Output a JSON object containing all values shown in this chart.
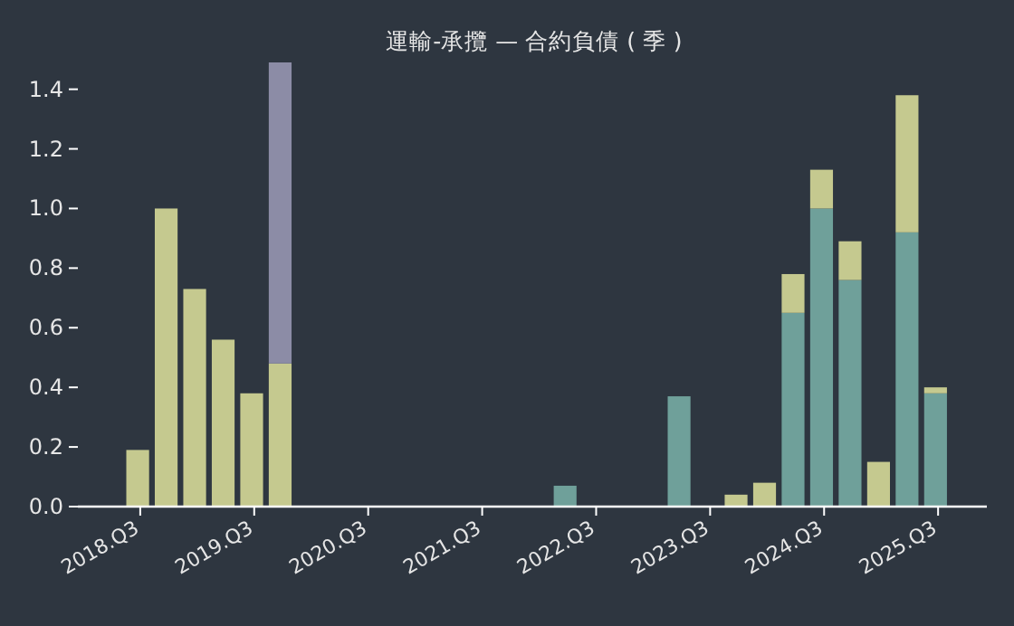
{
  "chart_data": {
    "type": "bar",
    "title": "運輸-承攬 — 合約負債 ( 季 )",
    "stacked": true,
    "categories": [
      "2018.Q3",
      null,
      null,
      null,
      "2019.Q3",
      null,
      null,
      null,
      "2020.Q3",
      null,
      null,
      null,
      "2021.Q3",
      null,
      null,
      null,
      "2022.Q3",
      null,
      null,
      null,
      "2023.Q3",
      null,
      null,
      null,
      "2024.Q3",
      null,
      null,
      null,
      "2025.Q3"
    ],
    "series": [
      {
        "color": "#6fa09a",
        "values": [
          null,
          null,
          null,
          null,
          null,
          null,
          null,
          null,
          null,
          null,
          null,
          null,
          null,
          null,
          null,
          0.07,
          null,
          null,
          null,
          0.37,
          null,
          null,
          null,
          0.65,
          1.0,
          0.76,
          null,
          0.92,
          0.38
        ]
      },
      {
        "color": "#c5c98f",
        "values": [
          0.19,
          1.0,
          0.73,
          0.56,
          0.38,
          0.48,
          null,
          null,
          null,
          null,
          null,
          null,
          null,
          null,
          null,
          null,
          null,
          null,
          null,
          null,
          null,
          0.04,
          0.08,
          0.13,
          0.13,
          0.13,
          0.15,
          0.46,
          0.02
        ]
      },
      {
        "color": "#8c8ca6",
        "values": [
          null,
          null,
          null,
          null,
          null,
          1.01,
          null,
          null,
          null,
          null,
          null,
          null,
          null,
          null,
          null,
          null,
          null,
          null,
          null,
          null,
          null,
          null,
          null,
          null,
          null,
          null,
          null,
          null,
          null
        ]
      }
    ],
    "ylim": [
      0,
      1.49
    ],
    "yticks": [
      {
        "value": 0,
        "label": "0.0"
      },
      {
        "value": 0.2,
        "label": "0.2"
      },
      {
        "value": 0.4,
        "label": "0.4"
      },
      {
        "value": 0.6,
        "label": "0.6"
      },
      {
        "value": 0.8,
        "label": "0.8"
      },
      {
        "value": 1.0,
        "label": "1.0"
      },
      {
        "value": 1.2,
        "label": "1.2"
      },
      {
        "value": 1.4,
        "label": "1.4"
      }
    ]
  }
}
